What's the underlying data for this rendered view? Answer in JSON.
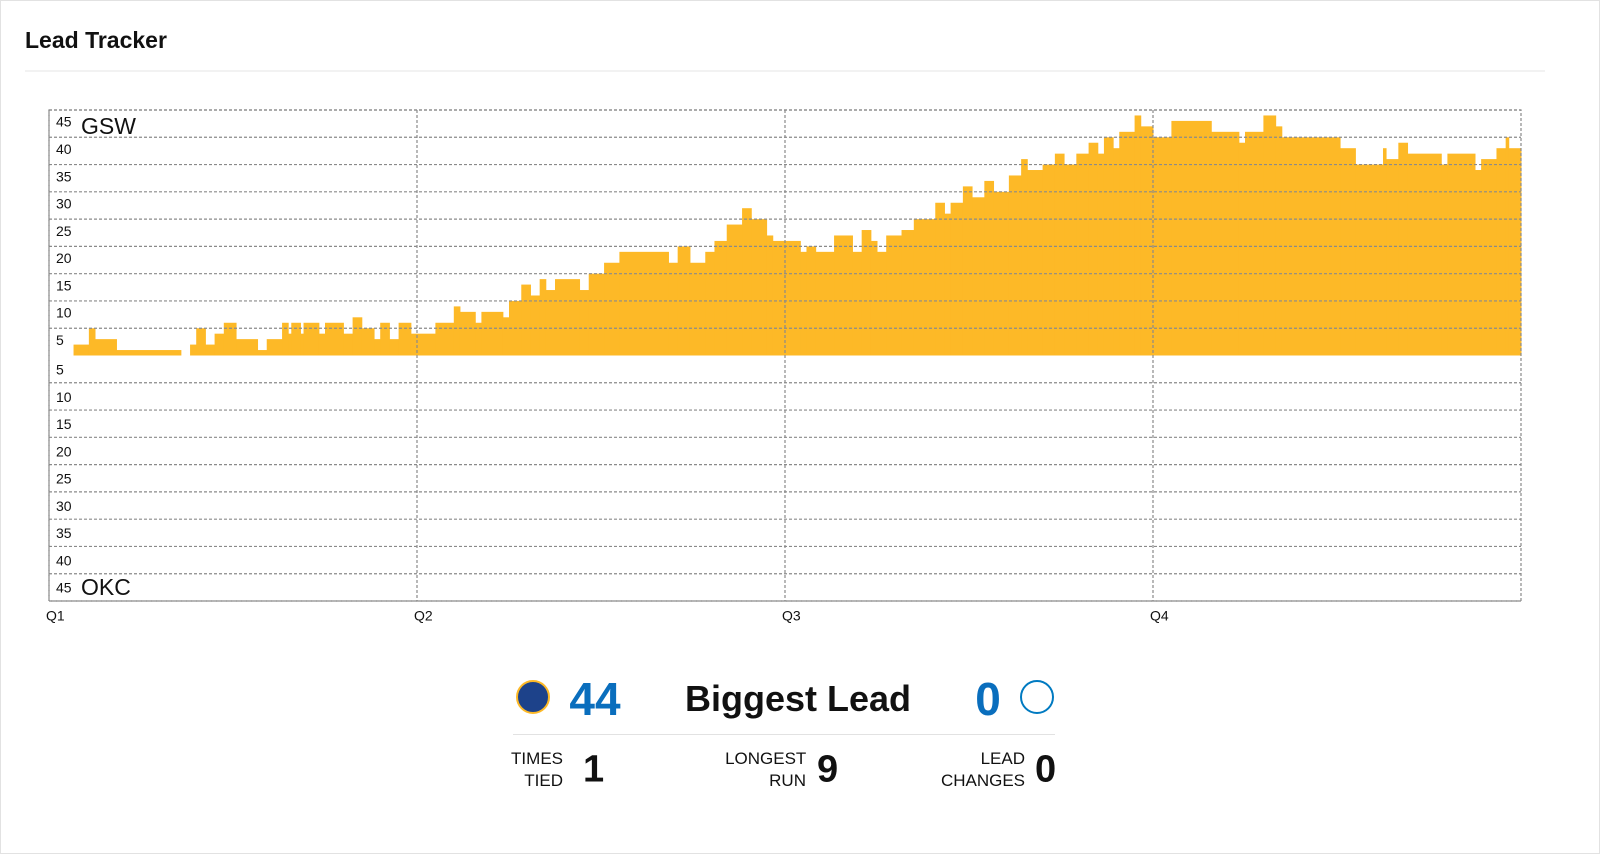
{
  "header": {
    "title": "Lead Tracker"
  },
  "chart_data": {
    "type": "step",
    "annotations": {
      "top": "GSW",
      "bottom": "OKC"
    },
    "x": [
      0,
      0.8,
      1.3,
      1.5,
      2.2,
      4.3,
      4.6,
      4.8,
      5.1,
      5.4,
      5.7,
      6.1,
      6.8,
      7.1,
      7.6,
      7.8,
      7.9,
      8.2,
      8.3,
      8.8,
      9.0,
      9.6,
      9.9,
      10.2,
      10.6,
      10.8,
      11.1,
      11.4,
      11.8,
      12.6,
      13.2,
      13.4,
      13.9,
      14.1,
      14.8,
      15.0,
      15.4,
      15.7,
      16.0,
      16.2,
      16.5,
      17.3,
      17.6,
      18.1,
      18.6,
      20.2,
      20.5,
      20.9,
      21.4,
      21.7,
      22.1,
      22.6,
      22.9,
      23.4,
      23.6,
      24.5,
      24.7,
      25.0,
      25.6,
      26.2,
      26.5,
      26.8,
      27.0,
      27.3,
      27.8,
      28.2,
      28.9,
      29.2,
      29.4,
      29.8,
      30.1,
      30.5,
      30.8,
      31.3,
      31.7,
      31.9,
      32.4,
      32.8,
      33.1,
      33.5,
      33.9,
      34.2,
      34.4,
      34.7,
      34.9,
      35.4,
      35.6,
      36.0,
      36.6,
      37.9,
      38.8,
      39.0,
      39.6,
      40.0,
      40.2,
      42.1,
      42.6,
      43.5,
      43.6,
      44.0,
      44.3,
      45.4,
      45.6,
      46.5,
      46.7,
      47.2,
      47.5,
      47.6
    ],
    "values": [
      0,
      2,
      5,
      3,
      1,
      0,
      2,
      5,
      2,
      4,
      6,
      3,
      1,
      3,
      6,
      4,
      6,
      4,
      6,
      4,
      6,
      4,
      7,
      5,
      3,
      6,
      3,
      6,
      4,
      6,
      9,
      8,
      6,
      8,
      7,
      10,
      13,
      11,
      14,
      12,
      14,
      12,
      15,
      17,
      19,
      17,
      20,
      17,
      19,
      21,
      24,
      27,
      25,
      22,
      21,
      19,
      20,
      19,
      22,
      19,
      23,
      21,
      19,
      22,
      23,
      25,
      28,
      26,
      28,
      31,
      29,
      32,
      30,
      33,
      36,
      34,
      35,
      37,
      35,
      37,
      39,
      37,
      40,
      38,
      41,
      44,
      42,
      40,
      43,
      41,
      39,
      41,
      44,
      42,
      40,
      38,
      35,
      38,
      36,
      39,
      37,
      35,
      37,
      34,
      36,
      38,
      40,
      38
    ],
    "color": "#fdb927",
    "xlim": [
      0,
      48
    ],
    "xticks": [
      {
        "value": 0,
        "label": "Q1"
      },
      {
        "value": 12,
        "label": "Q2"
      },
      {
        "value": 24,
        "label": "Q3"
      },
      {
        "value": 36,
        "label": "Q4"
      }
    ],
    "ylim": [
      -45,
      45
    ],
    "yticks": [
      {
        "value": -45,
        "label": "45"
      },
      {
        "value": -40,
        "label": "40"
      },
      {
        "value": -35,
        "label": "35"
      },
      {
        "value": -30,
        "label": "30"
      },
      {
        "value": -25,
        "label": "25"
      },
      {
        "value": -20,
        "label": "20"
      },
      {
        "value": -15,
        "label": "15"
      },
      {
        "value": -10,
        "label": "10"
      },
      {
        "value": -5,
        "label": "5"
      },
      5,
      10,
      15,
      20,
      25,
      30,
      35,
      40,
      45
    ],
    "grid": true
  },
  "stats": {
    "biggest_lead": {
      "label": "Biggest Lead",
      "home": 44,
      "away": 0
    },
    "items": [
      {
        "label": "TIMES TIED",
        "value": 1
      },
      {
        "label": "LONGEST RUN",
        "value": 9
      },
      {
        "label": "LEAD CHANGES",
        "value": 0
      }
    ]
  }
}
